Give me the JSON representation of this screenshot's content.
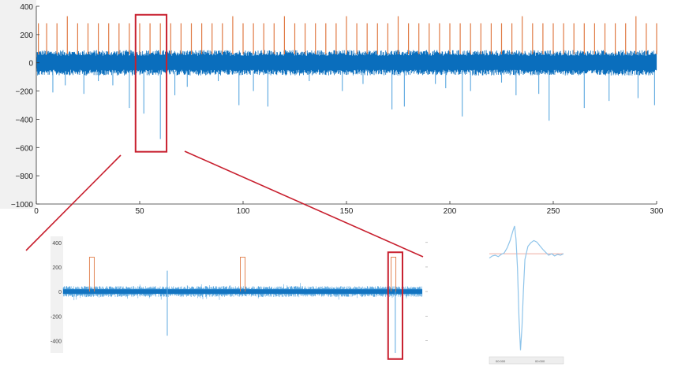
{
  "colors": {
    "signal": "#0a6ebd",
    "signal_light": "#5aa7df",
    "spike": "#e07b45",
    "highlight": "#c8202f",
    "axis_bg": "#f1f1f1",
    "baseline": "#e89080",
    "text": "#222222"
  },
  "chart_data": [
    {
      "id": "full-trace",
      "type": "line",
      "title": "",
      "xlabel": "",
      "ylabel": "",
      "xlim": [
        0,
        300
      ],
      "ylim": [
        -1000,
        400
      ],
      "x_ticks": [
        0,
        50,
        100,
        150,
        200,
        250,
        300
      ],
      "y_ticks": [
        400,
        200,
        0,
        -200,
        -400,
        -600,
        -800,
        -1000
      ],
      "x_tick_labels": [
        "0",
        "50",
        "100",
        "150",
        "200",
        "250",
        "300"
      ],
      "y_tick_labels": [
        "400",
        "200",
        "0",
        "−200",
        "−400",
        "−600",
        "−800",
        "−1000"
      ],
      "noise_band": [
        -90,
        90
      ],
      "grid": false,
      "series": [
        {
          "kind": "detected-spike-markers",
          "x": [
            1,
            5,
            10,
            15,
            20,
            25,
            30,
            35,
            40,
            45,
            50,
            55,
            60,
            65,
            70,
            75,
            80,
            85,
            90,
            95,
            100,
            105,
            110,
            115,
            120,
            125,
            130,
            135,
            140,
            145,
            150,
            155,
            160,
            165,
            170,
            175,
            180,
            185,
            190,
            195,
            200,
            205,
            210,
            215,
            220,
            225,
            230,
            235,
            240,
            245,
            250,
            255,
            260,
            265,
            270,
            275,
            280,
            285,
            290,
            295,
            300
          ],
          "values": [
            280,
            280,
            280,
            330,
            280,
            280,
            280,
            280,
            280,
            280,
            280,
            280,
            280,
            280,
            280,
            280,
            280,
            280,
            280,
            330,
            280,
            280,
            280,
            280,
            330,
            280,
            280,
            280,
            280,
            280,
            330,
            280,
            280,
            280,
            280,
            330,
            280,
            280,
            280,
            280,
            280,
            280,
            280,
            280,
            280,
            280,
            280,
            330,
            280,
            280,
            280,
            280,
            280,
            280,
            280,
            280,
            280,
            280,
            330,
            280,
            280
          ]
        },
        {
          "kind": "negative-spikes",
          "x": [
            8,
            14,
            23,
            30,
            37,
            45,
            52,
            60,
            67,
            73,
            88,
            98,
            105,
            112,
            132,
            148,
            158,
            172,
            178,
            193,
            198,
            206,
            210,
            225,
            232,
            243,
            248,
            265,
            277,
            291,
            299
          ],
          "values": [
            -210,
            -160,
            -220,
            -130,
            -160,
            -320,
            -360,
            -540,
            -230,
            -170,
            -130,
            -300,
            -200,
            -310,
            -130,
            -200,
            -150,
            -330,
            -310,
            -150,
            -180,
            -380,
            -200,
            -140,
            -230,
            -220,
            -410,
            -320,
            -270,
            -250,
            -300
          ]
        }
      ],
      "zoom_window": {
        "x": [
          48,
          63
        ],
        "y": [
          -630,
          340
        ]
      }
    },
    {
      "id": "zoomed-trace",
      "type": "line",
      "title": "",
      "xlabel": "",
      "ylabel": "",
      "ylim": [
        -500,
        450
      ],
      "y_ticks": [
        400,
        200,
        0,
        -200,
        -400
      ],
      "y_tick_labels": [
        "400",
        "200",
        "0",
        "-200",
        "-400"
      ],
      "noise_band": [
        -45,
        45
      ],
      "grid": false,
      "series": [
        {
          "kind": "detected-spike-markers",
          "x": [
            0.08,
            0.5,
            0.92
          ],
          "values": [
            280,
            280,
            280
          ]
        },
        {
          "kind": "isolated-spikes",
          "x": [
            0.29,
            0.29
          ],
          "values": [
            170,
            -360
          ]
        },
        {
          "kind": "highlighted-spike",
          "x": [
            0.925
          ],
          "values": [
            -500
          ]
        }
      ],
      "highlight_window": {
        "x": [
          0.905,
          0.945
        ],
        "y": [
          -550,
          320
        ]
      }
    },
    {
      "id": "spike-waveform",
      "type": "line",
      "title": "",
      "xlabel": "",
      "ylabel": "",
      "x": [
        0,
        2,
        4,
        6,
        8,
        10,
        12,
        14,
        16,
        17,
        18,
        19,
        20,
        21,
        22,
        23,
        24,
        26,
        28,
        30,
        32,
        34,
        36,
        38,
        40,
        42,
        44,
        46,
        48,
        50
      ],
      "values": [
        -6,
        -3,
        -2,
        -4,
        -1,
        1,
        8,
        18,
        32,
        38,
        20,
        -20,
        -88,
        -132,
        -100,
        -50,
        -8,
        10,
        15,
        18,
        16,
        11,
        6,
        2,
        -2,
        0,
        -3,
        -1,
        -2,
        0
      ],
      "ylim": [
        -140,
        40
      ],
      "baseline": 0,
      "x_tick_labels": [
        "00:000",
        "00:000"
      ]
    }
  ]
}
